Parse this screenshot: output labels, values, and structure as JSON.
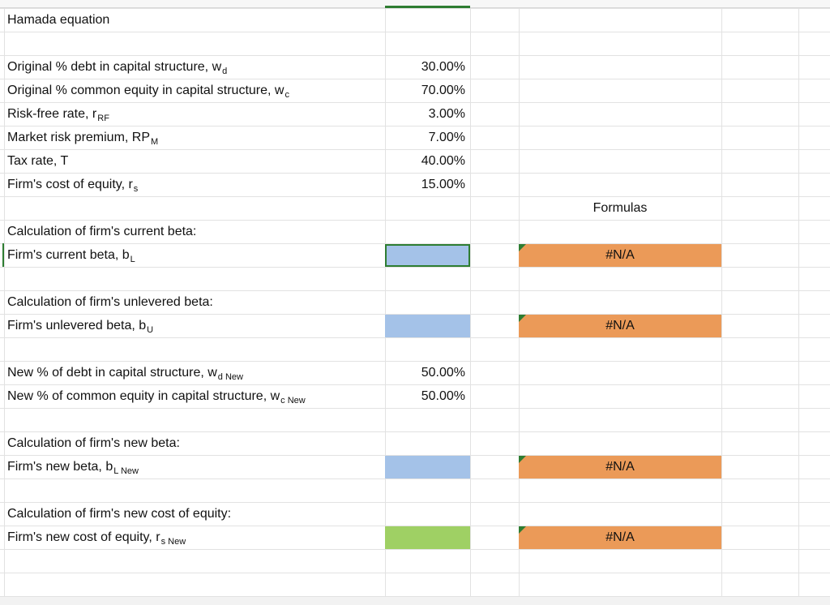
{
  "title": "Hamada equation",
  "inputs": [
    {
      "label": "Original % debt in capital structure, w",
      "sub": "d",
      "value": "30.00%"
    },
    {
      "label": "Original % common equity in capital structure, w",
      "sub": "c",
      "value": "70.00%"
    },
    {
      "label": "Risk-free rate, r",
      "sub": "RF",
      "value": "3.00%"
    },
    {
      "label": "Market risk premium, RP",
      "sub": "M",
      "value": "7.00%"
    },
    {
      "label": "Tax rate, T",
      "value": "40.00%"
    },
    {
      "label": "Firm's cost of equity, r",
      "sub": "s",
      "value": "15.00%"
    }
  ],
  "formulas_header": "Formulas",
  "sections": [
    {
      "heading": "Calculation of firm's current beta:",
      "label": "Firm's current beta, b",
      "sub": "L",
      "result": "#N/A"
    },
    {
      "heading": "Calculation of firm's unlevered beta:",
      "label": "Firm's unlevered beta, b",
      "sub": "U",
      "result": "#N/A"
    },
    {
      "heading": "Calculation of firm's new beta:",
      "label": "Firm's new beta, b",
      "sub": "L New",
      "result": "#N/A"
    },
    {
      "heading": "Calculation of firm's new cost of equity:",
      "label": "Firm's new cost of equity, r",
      "sub": "s New",
      "result": "#N/A"
    }
  ],
  "new_inputs": [
    {
      "label": "New % of debt in capital structure, w",
      "sub": "d New",
      "value": "50.00%"
    },
    {
      "label": "New % of common equity in capital structure, w",
      "sub": "c New",
      "value": "50.00%"
    }
  ]
}
